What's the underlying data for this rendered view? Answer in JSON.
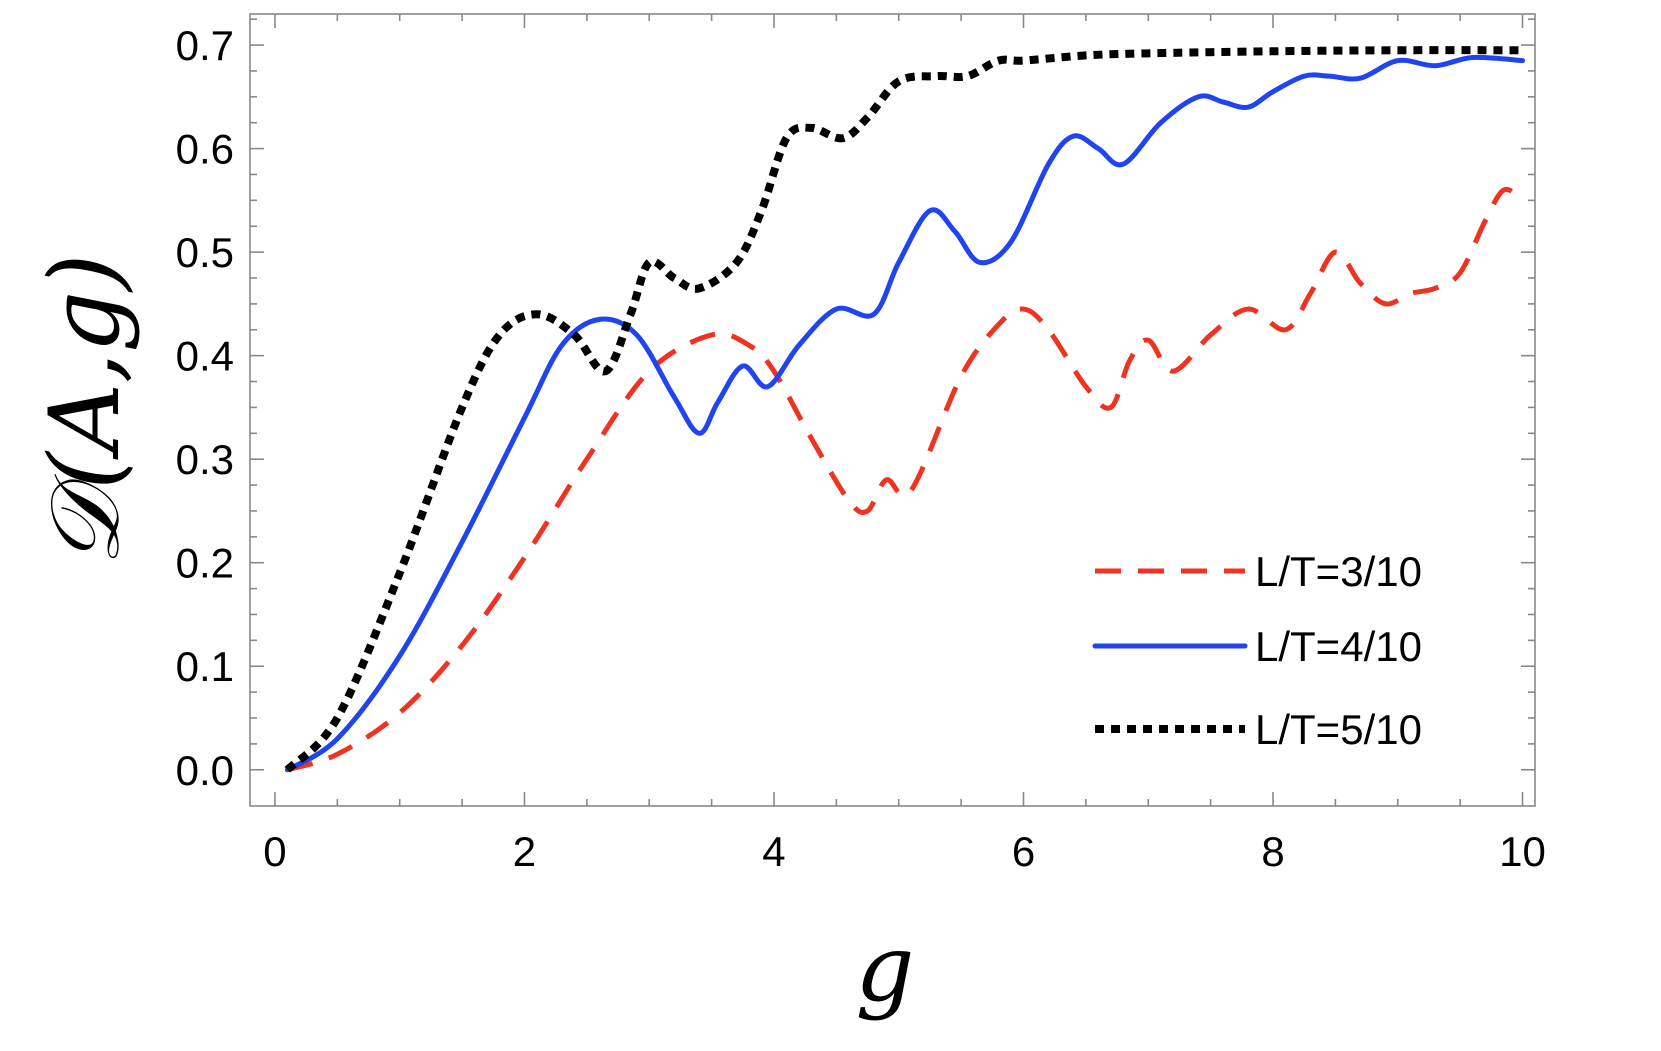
{
  "chart_data": {
    "type": "line",
    "xlabel": "g",
    "ylabel": "𝒟(A,g)",
    "xlim": [
      -0.2,
      10.1
    ],
    "ylim": [
      -0.035,
      0.73
    ],
    "xticks": [
      0,
      2,
      4,
      6,
      8,
      10
    ],
    "xtick_labels": [
      "0",
      "2",
      "4",
      "6",
      "8",
      "10"
    ],
    "yticks": [
      0.0,
      0.1,
      0.2,
      0.3,
      0.4,
      0.5,
      0.6,
      0.7
    ],
    "ytick_labels": [
      "0.0",
      "0.1",
      "0.2",
      "0.3",
      "0.4",
      "0.5",
      "0.6",
      "0.7"
    ],
    "grid": false,
    "legend_position": "bottom-right",
    "series": [
      {
        "name": "L/T=3/10",
        "color": "#ee3322",
        "style": "dashed",
        "x": [
          0.1,
          0.5,
          1.0,
          1.5,
          2.0,
          2.5,
          3.0,
          3.5,
          3.8,
          4.0,
          4.3,
          4.6,
          4.75,
          4.9,
          5.1,
          5.5,
          5.8,
          6.0,
          6.2,
          6.5,
          6.7,
          6.85,
          7.0,
          7.2,
          7.5,
          7.8,
          8.1,
          8.3,
          8.5,
          8.7,
          8.9,
          9.1,
          9.3,
          9.5,
          9.7,
          9.85,
          10.0
        ],
        "y": [
          0.0,
          0.015,
          0.055,
          0.12,
          0.205,
          0.3,
          0.385,
          0.42,
          0.41,
          0.385,
          0.32,
          0.26,
          0.25,
          0.28,
          0.27,
          0.38,
          0.43,
          0.445,
          0.425,
          0.37,
          0.35,
          0.395,
          0.415,
          0.385,
          0.42,
          0.445,
          0.425,
          0.46,
          0.5,
          0.47,
          0.45,
          0.46,
          0.465,
          0.48,
          0.53,
          0.56,
          0.55
        ]
      },
      {
        "name": "L/T=4/10",
        "color": "#1f44f0",
        "style": "solid",
        "x": [
          0.1,
          0.5,
          1.0,
          1.5,
          2.0,
          2.3,
          2.6,
          2.9,
          3.2,
          3.4,
          3.55,
          3.75,
          3.95,
          4.2,
          4.5,
          4.8,
          5.0,
          5.25,
          5.45,
          5.65,
          5.9,
          6.2,
          6.4,
          6.6,
          6.8,
          7.1,
          7.4,
          7.6,
          7.8,
          8.0,
          8.25,
          8.45,
          8.7,
          9.0,
          9.3,
          9.6,
          10.0
        ],
        "y": [
          0.0,
          0.03,
          0.11,
          0.22,
          0.34,
          0.41,
          0.435,
          0.42,
          0.36,
          0.325,
          0.355,
          0.39,
          0.37,
          0.41,
          0.445,
          0.44,
          0.49,
          0.54,
          0.52,
          0.49,
          0.51,
          0.585,
          0.612,
          0.6,
          0.585,
          0.625,
          0.65,
          0.645,
          0.64,
          0.655,
          0.67,
          0.67,
          0.668,
          0.685,
          0.68,
          0.688,
          0.685
        ]
      },
      {
        "name": "L/T=5/10",
        "color": "#000000",
        "style": "dotted",
        "x": [
          0.1,
          0.5,
          1.0,
          1.5,
          1.8,
          2.1,
          2.4,
          2.65,
          2.85,
          3.0,
          3.2,
          3.4,
          3.7,
          3.9,
          4.1,
          4.3,
          4.55,
          4.75,
          5.0,
          5.3,
          5.55,
          5.8,
          6.0,
          6.5,
          7.0,
          8.0,
          9.0,
          10.0
        ],
        "y": [
          0.0,
          0.05,
          0.19,
          0.35,
          0.42,
          0.44,
          0.42,
          0.385,
          0.44,
          0.49,
          0.475,
          0.465,
          0.49,
          0.54,
          0.61,
          0.62,
          0.61,
          0.63,
          0.665,
          0.67,
          0.67,
          0.685,
          0.685,
          0.69,
          0.692,
          0.694,
          0.695,
          0.695
        ]
      }
    ]
  }
}
